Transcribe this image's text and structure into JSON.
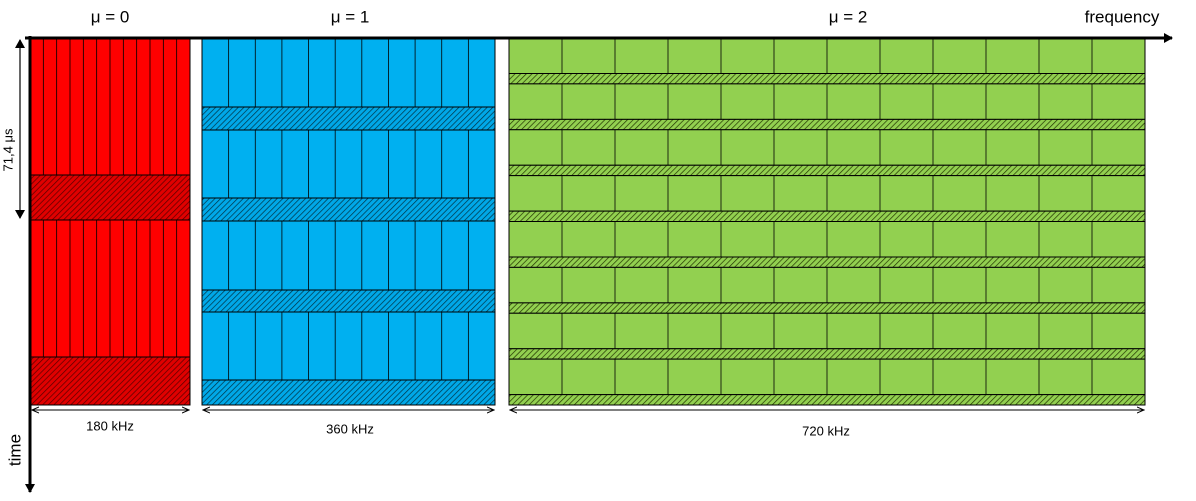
{
  "header": {
    "mu0": "μ = 0",
    "mu1": "μ = 1",
    "mu2": "μ = 2",
    "frequency": "frequency"
  },
  "axis": {
    "time": "time",
    "symbol_duration": "71,4 μs"
  },
  "bandwidths": {
    "mu0": "180 kHz",
    "mu1": "360 kHz",
    "mu2": "720 kHz"
  }
}
